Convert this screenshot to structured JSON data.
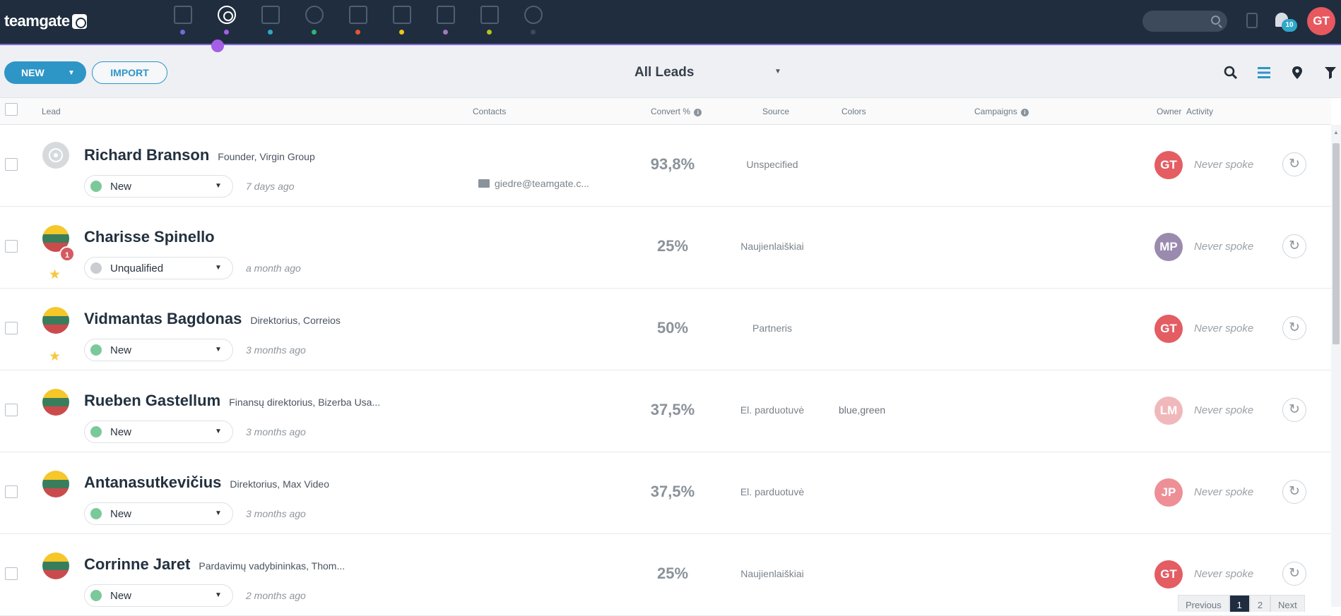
{
  "app": {
    "logo_text": "teamgate",
    "nav": [
      {
        "icon": "dashboard-icon",
        "dot": "#6b6fd8",
        "active": false
      },
      {
        "icon": "leads-target-icon",
        "dot": "#a55ee6",
        "active": true
      },
      {
        "icon": "companies-building-icon",
        "dot": "#2fa7c8",
        "active": false
      },
      {
        "icon": "contacts-person-icon",
        "dot": "#2bb673",
        "active": false
      },
      {
        "icon": "deals-briefcase-icon",
        "dot": "#e4572e",
        "active": false
      },
      {
        "icon": "calendar-icon",
        "dot": "#f2c21a",
        "active": false
      },
      {
        "icon": "inbox-icon",
        "dot": "#a07ab8",
        "active": false
      },
      {
        "icon": "documents-icon",
        "dot": "#b8c21a",
        "active": false
      },
      {
        "icon": "reports-pie-icon",
        "dot": "#3a4a5c",
        "active": false
      }
    ],
    "notifications_count": "10",
    "user_initials": "GT"
  },
  "toolbar": {
    "new_label": "NEW",
    "import_label": "IMPORT",
    "view_label": "All Leads",
    "tool_icons": [
      "search-icon",
      "list-view-icon",
      "map-pin-icon",
      "filter-icon"
    ]
  },
  "columns": {
    "lead": "Lead",
    "contacts": "Contacts",
    "convert": "Convert %",
    "source": "Source",
    "colors": "Colors",
    "campaigns": "Campaigns",
    "owner": "Owner",
    "activity": "Activity"
  },
  "rows": [
    {
      "name": "Richard Branson",
      "title": "Founder, Virgin Group",
      "status": "New",
      "status_color": "#7bc99a",
      "ago": "7 days ago",
      "email": "giedre@teamgate.c...",
      "convert": "93,8%",
      "source": "Unspecified",
      "colors": "",
      "owner": "GT",
      "owner_color": "#e35d63",
      "activity": "Never spoke",
      "avatar": "target",
      "starred": false,
      "badge": ""
    },
    {
      "name": "Charisse Spinello",
      "title": "",
      "status": "Unqualified",
      "status_color": "#c9cdd2",
      "ago": "a month ago",
      "email": "",
      "convert": "25%",
      "source": "Naujienlaiškiai",
      "colors": "",
      "owner": "MP",
      "owner_color": "#9a8aae",
      "activity": "Never spoke",
      "avatar": "flag",
      "starred": true,
      "badge": "1"
    },
    {
      "name": "Vidmantas Bagdonas",
      "title": "Direktorius, Correios",
      "status": "New",
      "status_color": "#7bc99a",
      "ago": "3 months ago",
      "email": "",
      "convert": "50%",
      "source": "Partneris",
      "colors": "",
      "owner": "GT",
      "owner_color": "#e35d63",
      "activity": "Never spoke",
      "avatar": "flag",
      "starred": true,
      "badge": ""
    },
    {
      "name": "Rueben Gastellum",
      "title": "Finansų direktorius, Bizerba Usa...",
      "status": "New",
      "status_color": "#7bc99a",
      "ago": "3 months ago",
      "email": "",
      "convert": "37,5%",
      "source": "El. parduotuvė",
      "colors": "blue,green",
      "owner": "LM",
      "owner_color": "#f0b8bb",
      "activity": "Never spoke",
      "avatar": "flag",
      "starred": false,
      "badge": ""
    },
    {
      "name": "Antanasutkevičius",
      "title": "Direktorius, Max Video",
      "status": "New",
      "status_color": "#7bc99a",
      "ago": "3 months ago",
      "email": "",
      "convert": "37,5%",
      "source": "El. parduotuvė",
      "colors": "",
      "owner": "JP",
      "owner_color": "#ee8f96",
      "activity": "Never spoke",
      "avatar": "flag",
      "starred": false,
      "badge": ""
    },
    {
      "name": "Corrinne Jaret",
      "title": "Pardavimų vadybininkas, Thom...",
      "status": "New",
      "status_color": "#7bc99a",
      "ago": "2 months ago",
      "email": "",
      "convert": "25%",
      "source": "Naujienlaiškiai",
      "colors": "",
      "owner": "GT",
      "owner_color": "#e35d63",
      "activity": "Never spoke",
      "avatar": "flag",
      "starred": false,
      "badge": ""
    }
  ],
  "pagination": {
    "previous": "Previous",
    "pages": [
      "1",
      "2"
    ],
    "current": "1",
    "next": "Next"
  }
}
